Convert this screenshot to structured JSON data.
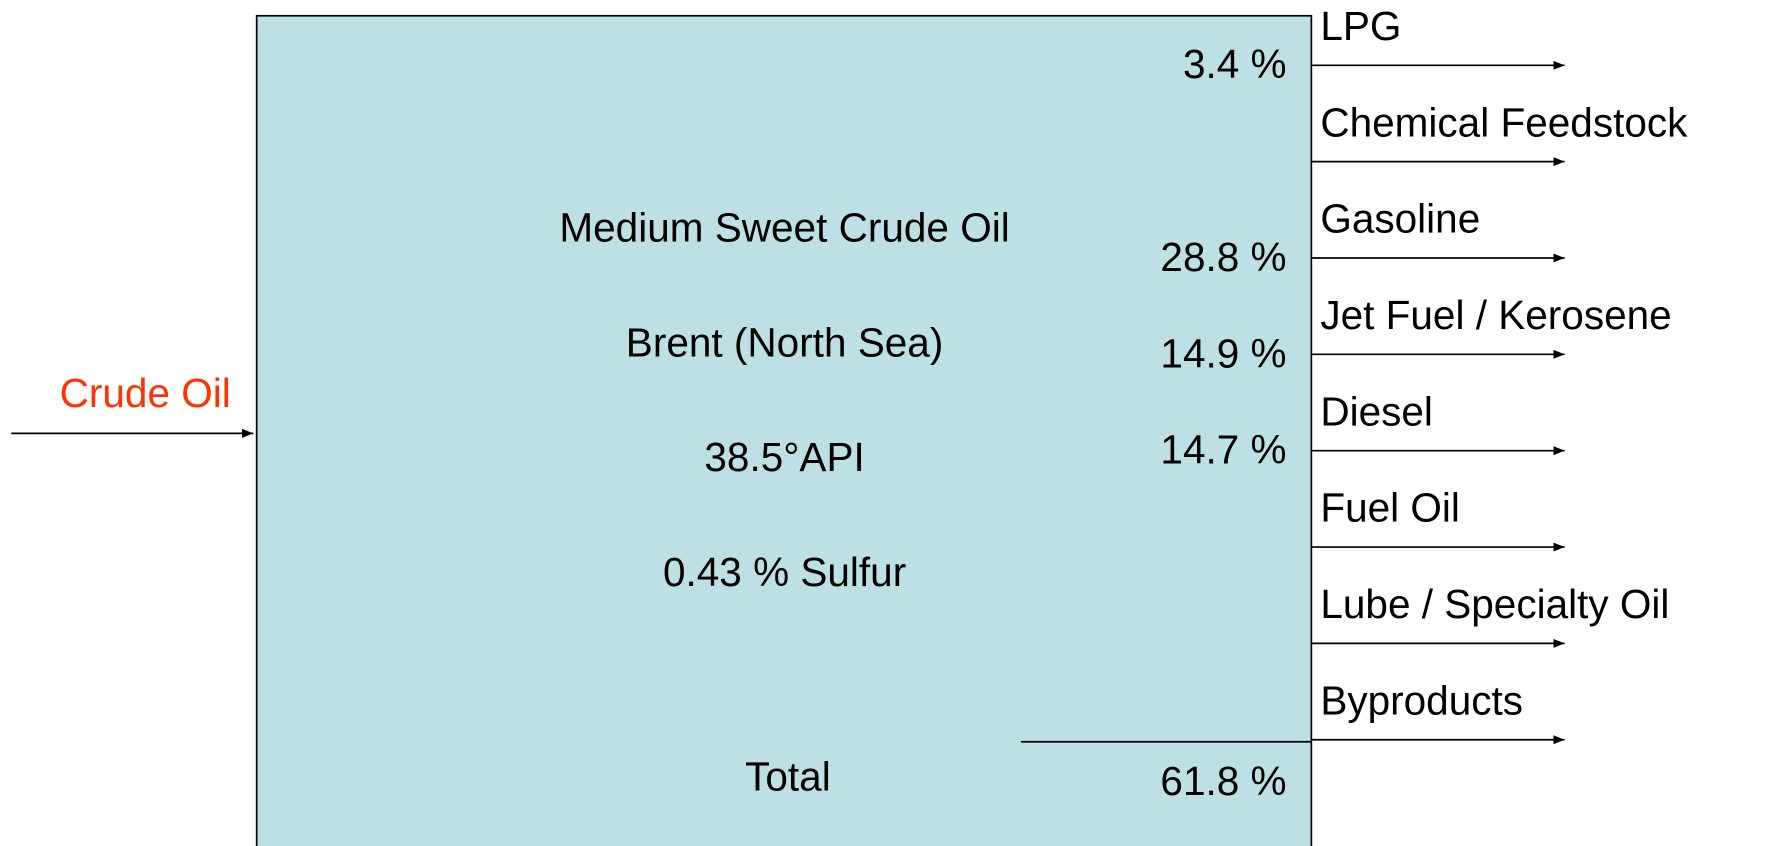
{
  "input": "Crude Oil",
  "properties": [
    "Medium Sweet Crude Oil",
    "Brent (North Sea)",
    "38.5°API",
    "0.43 % Sulfur"
  ],
  "outputs": [
    {
      "label": "LPG",
      "share": "3.4 %"
    },
    {
      "label": "Chemical Feedstock"
    },
    {
      "label": "Gasoline",
      "share": "28.8 %"
    },
    {
      "label": "Jet Fuel / Kerosene",
      "share": "14.9 %"
    },
    {
      "label": "Diesel",
      "share": "14.7 %"
    },
    {
      "label": "Fuel Oil"
    },
    {
      "label": "Lube / Specialty Oil"
    },
    {
      "label": "Byproducts"
    }
  ],
  "total": {
    "label": "Total",
    "value": "61.8 %"
  }
}
